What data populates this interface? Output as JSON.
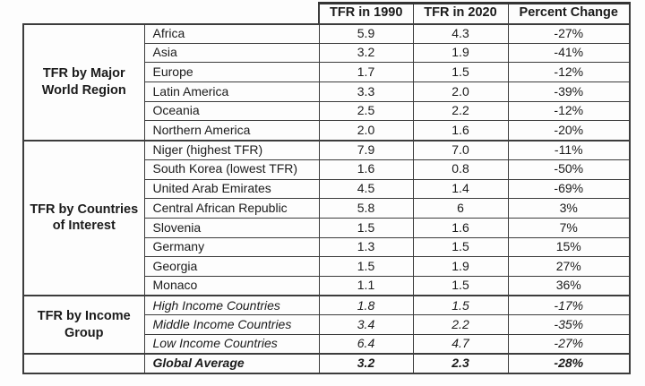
{
  "chart_data": {
    "type": "table",
    "columns": [
      "",
      "",
      "TFR in 1990",
      "TFR in 2020",
      "Percent Change"
    ],
    "sections": [
      {
        "label": "TFR by Major World Region",
        "style": "normal",
        "rows": [
          {
            "name": "Africa",
            "tfr_1990": "5.9",
            "tfr_2020": "4.3",
            "percent_change": "-27%"
          },
          {
            "name": "Asia",
            "tfr_1990": "3.2",
            "tfr_2020": "1.9",
            "percent_change": "-41%"
          },
          {
            "name": "Europe",
            "tfr_1990": "1.7",
            "tfr_2020": "1.5",
            "percent_change": "-12%"
          },
          {
            "name": "Latin America",
            "tfr_1990": "3.3",
            "tfr_2020": "2.0",
            "percent_change": "-39%"
          },
          {
            "name": "Oceania",
            "tfr_1990": "2.5",
            "tfr_2020": "2.2",
            "percent_change": "-12%"
          },
          {
            "name": "Northern America",
            "tfr_1990": "2.0",
            "tfr_2020": "1.6",
            "percent_change": "-20%"
          }
        ]
      },
      {
        "label": "TFR by Countries of Interest",
        "style": "normal",
        "rows": [
          {
            "name": "Niger (highest TFR)",
            "tfr_1990": "7.9",
            "tfr_2020": "7.0",
            "percent_change": "-11%"
          },
          {
            "name": "South Korea (lowest TFR)",
            "tfr_1990": "1.6",
            "tfr_2020": "0.8",
            "percent_change": "-50%"
          },
          {
            "name": "United Arab Emirates",
            "tfr_1990": "4.5",
            "tfr_2020": "1.4",
            "percent_change": "-69%"
          },
          {
            "name": "Central African Republic",
            "tfr_1990": "5.8",
            "tfr_2020": "6",
            "percent_change": "3%"
          },
          {
            "name": "Slovenia",
            "tfr_1990": "1.5",
            "tfr_2020": "1.6",
            "percent_change": "7%"
          },
          {
            "name": "Germany",
            "tfr_1990": "1.3",
            "tfr_2020": "1.5",
            "percent_change": "15%"
          },
          {
            "name": "Georgia",
            "tfr_1990": "1.5",
            "tfr_2020": "1.9",
            "percent_change": "27%"
          },
          {
            "name": "Monaco",
            "tfr_1990": "1.1",
            "tfr_2020": "1.5",
            "percent_change": "36%"
          }
        ]
      },
      {
        "label": "TFR by Income Group",
        "style": "italic",
        "rows": [
          {
            "name": "High Income Countries",
            "tfr_1990": "1.8",
            "tfr_2020": "1.5",
            "percent_change": "-17%"
          },
          {
            "name": "Middle Income Countries",
            "tfr_1990": "3.4",
            "tfr_2020": "2.2",
            "percent_change": "-35%"
          },
          {
            "name": "Low Income Countries",
            "tfr_1990": "6.4",
            "tfr_2020": "4.7",
            "percent_change": "-27%"
          }
        ]
      },
      {
        "label": "",
        "style": "bold-italic",
        "rows": [
          {
            "name": "Global Average",
            "tfr_1990": "3.2",
            "tfr_2020": "2.3",
            "percent_change": "-28%"
          }
        ]
      }
    ]
  }
}
